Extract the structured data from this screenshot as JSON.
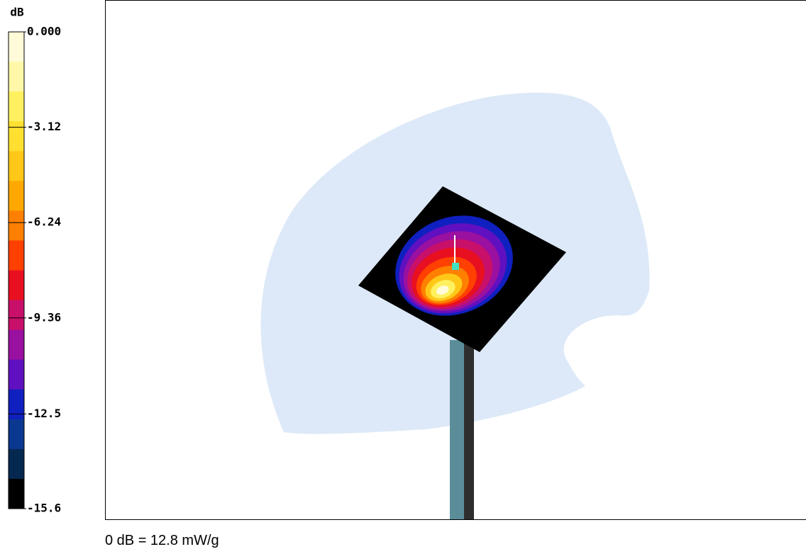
{
  "colorbar": {
    "unit": "dB",
    "lim": [
      -15.6,
      0
    ],
    "ticks": [
      {
        "value": 0,
        "label": "0.000"
      },
      -3.12,
      -6.24,
      -9.36,
      -12.5,
      -15.6
    ],
    "colors": [
      "#fffbd8",
      "#fff8a8",
      "#fff060",
      "#ffe030",
      "#ffc818",
      "#ffa800",
      "#ff8000",
      "#ff4000",
      "#e81020",
      "#c8106a",
      "#9a10a0",
      "#6010c0",
      "#1020c0",
      "#0a3890",
      "#052850",
      "#000000"
    ]
  },
  "caption": "0 dB = 12.8 mW/g"
}
